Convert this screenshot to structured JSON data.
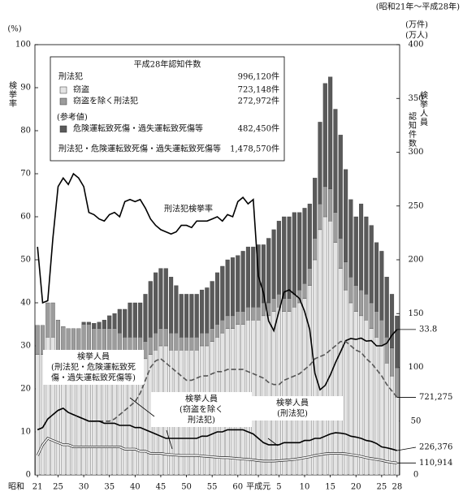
{
  "chart_data": {
    "type": "bar",
    "stacked": true,
    "title": "(昭和21年～平成28年)",
    "x_prefix": "昭和",
    "categories": [
      "21",
      null,
      null,
      null,
      "25",
      null,
      null,
      null,
      null,
      "30",
      null,
      null,
      null,
      null,
      "35",
      null,
      null,
      null,
      null,
      "40",
      null,
      null,
      null,
      null,
      "45",
      null,
      null,
      null,
      null,
      "50",
      null,
      null,
      null,
      null,
      "55",
      null,
      null,
      null,
      null,
      "60",
      null,
      null,
      null,
      "平成元",
      null,
      null,
      null,
      "5",
      null,
      null,
      null,
      null,
      "10",
      null,
      null,
      null,
      null,
      "15",
      null,
      null,
      null,
      null,
      "20",
      null,
      null,
      null,
      null,
      "25",
      null,
      null,
      "28"
    ],
    "ylabel_unit": "(%)",
    "ylabel": "検挙率",
    "y2label_units": [
      "(万件)",
      "(万人)"
    ],
    "y2labels": [
      "認知件数",
      "検挙人員"
    ],
    "ylim": [
      0,
      100
    ],
    "yticks": [
      0,
      10,
      20,
      30,
      40,
      50,
      60,
      70,
      80,
      90,
      100
    ],
    "y2lim": [
      0,
      400
    ],
    "y2ticks": [
      0,
      50,
      100,
      150,
      200,
      250,
      300,
      350,
      400
    ],
    "grid": false,
    "series": [
      {
        "name": "窃盗",
        "color": "#e4e4e4",
        "axis": "y2",
        "values": [
          112,
          112,
          128,
          128,
          116,
          112,
          108,
          108,
          108,
          112,
          112,
          108,
          108,
          112,
          112,
          112,
          112,
          108,
          108,
          108,
          108,
          108,
          112,
          116,
          120,
          120,
          116,
          116,
          116,
          116,
          116,
          116,
          120,
          120,
          124,
          128,
          132,
          136,
          136,
          140,
          140,
          144,
          144,
          144,
          148,
          148,
          152,
          156,
          152,
          152,
          156,
          160,
          164,
          176,
          200,
          228,
          240,
          236,
          216,
          192,
          172,
          160,
          152,
          148,
          144,
          136,
          128,
          120,
          104,
          92,
          72.3148
        ]
      },
      {
        "name": "窃盗を除く刑法犯",
        "color": "#9c9c9c",
        "axis": "y2",
        "values": [
          27,
          27,
          32,
          32,
          28,
          26,
          28,
          28,
          28,
          28,
          28,
          28,
          28,
          24,
          24,
          24,
          20,
          20,
          20,
          20,
          20,
          16,
          16,
          16,
          16,
          16,
          16,
          16,
          12,
          12,
          12,
          12,
          12,
          12,
          12,
          12,
          12,
          12,
          12,
          12,
          12,
          12,
          12,
          12,
          12,
          12,
          12,
          12,
          12,
          12,
          12,
          12,
          14,
          16,
          20,
          24,
          28,
          30,
          28,
          28,
          26,
          24,
          24,
          24,
          24,
          24,
          24,
          24,
          24,
          26,
          27.2972
        ]
      },
      {
        "name": "危険運転致死傷・過失運転致死傷等",
        "color": "#5a5a5a",
        "axis": "y2",
        "values": [
          0,
          0,
          0,
          0,
          0,
          0,
          0,
          0,
          0,
          2,
          2,
          5,
          6,
          8,
          12,
          14,
          22,
          26,
          32,
          32,
          32,
          44,
          52,
          56,
          56,
          56,
          52,
          44,
          40,
          40,
          40,
          40,
          40,
          42,
          44,
          48,
          50,
          52,
          54,
          52,
          56,
          56,
          56,
          58,
          54,
          60,
          64,
          68,
          76,
          76,
          76,
          72,
          70,
          60,
          56,
          76,
          96,
          104,
          96,
          96,
          86,
          72,
          64,
          80,
          72,
          72,
          64,
          64,
          56,
          50,
          48.245
        ]
      }
    ],
    "lines": [
      {
        "label_lines": [
          "刑法犯検挙率"
        ],
        "axis": "y",
        "color": "#000000",
        "dash": "none",
        "values": [
          53,
          40,
          40.5,
          55,
          67,
          69,
          67.5,
          70,
          69,
          67,
          61,
          60.5,
          59.5,
          59,
          60.5,
          61,
          60,
          63.5,
          64,
          63.5,
          64,
          62,
          59.5,
          58,
          57,
          56.5,
          56,
          56.5,
          58,
          58,
          57.5,
          59,
          59,
          59,
          59.5,
          60,
          59,
          60.5,
          60,
          63.5,
          64.5,
          63,
          64,
          46.2,
          42.3,
          35.8,
          33.5,
          38,
          42.5,
          43,
          42,
          41,
          38,
          33.8,
          23.6,
          19.8,
          20.8,
          23.2,
          26.1,
          28.6,
          31.2,
          31.7,
          31.5,
          31.8,
          31.1,
          31.2,
          30,
          30,
          30.6,
          32.5,
          33.8
        ]
      },
      {
        "label_lines": [
          "検挙人員",
          "(刑法犯・危険運転致死",
          "傷・過失運転致死傷等)"
        ],
        "axis": "y2",
        "color": "#555555",
        "dash": "6 3",
        "end_label": "721,275",
        "values": [
          42,
          44,
          52,
          56,
          60,
          62,
          58,
          56,
          54,
          52,
          50,
          50,
          50,
          50,
          50,
          52,
          56,
          60,
          64,
          68,
          76,
          88,
          100,
          106,
          108,
          104,
          100,
          96,
          92,
          88,
          88,
          90,
          92,
          92,
          94,
          96,
          96,
          98,
          98,
          98,
          98,
          96,
          94,
          92,
          90,
          86,
          84,
          84,
          88,
          90,
          92,
          94,
          98,
          102,
          108,
          110,
          112,
          116,
          120,
          124,
          124,
          120,
          116,
          114,
          108,
          104,
          98,
          92,
          84,
          78,
          72.1275
        ]
      },
      {
        "label_lines": [
          "検挙人員",
          "(刑法犯)"
        ],
        "axis": "y2",
        "color": "#000000",
        "dash": "none",
        "end_label": "226,376",
        "values": [
          42,
          44,
          52,
          56,
          60,
          62,
          58,
          56,
          54,
          52,
          50,
          50,
          50,
          48,
          48,
          48,
          46,
          46,
          46,
          44,
          44,
          42,
          40,
          38,
          36,
          34,
          34,
          34,
          34,
          34,
          34,
          34,
          36,
          36,
          38,
          40,
          40,
          42,
          42,
          42,
          42,
          40,
          38,
          34,
          30,
          28,
          28,
          28,
          30,
          30,
          30,
          30,
          32,
          32,
          34,
          34,
          36,
          38,
          39.2,
          38.8,
          38,
          36,
          35.2,
          34,
          32,
          31.2,
          29.2,
          26,
          25.2,
          24,
          22.6376
        ]
      },
      {
        "label_lines": [
          "検挙人員",
          "(窃盗を除く",
          "刑法犯)"
        ],
        "axis": "y2",
        "color": "#ffffff",
        "dash": "none",
        "end_label": "110,914",
        "values": [
          18,
          28,
          34,
          32,
          30,
          28,
          28,
          26,
          26,
          26,
          26,
          26,
          26,
          26,
          26,
          26,
          26,
          24,
          24,
          24,
          22,
          22,
          20,
          20,
          20,
          19.2,
          18.8,
          18.4,
          18,
          18,
          18,
          18,
          17.6,
          17.2,
          16.8,
          16.4,
          16,
          16,
          15.6,
          15.2,
          14.8,
          14.4,
          14,
          13.2,
          12.8,
          12.8,
          12.8,
          13.2,
          13.6,
          14,
          14.4,
          15.2,
          16,
          16.8,
          18,
          18.8,
          19.6,
          20,
          20,
          20,
          19.6,
          18.8,
          18,
          17.2,
          16,
          15.2,
          14.4,
          13.6,
          12.4,
          11.6,
          11.0914
        ]
      }
    ],
    "legend": {
      "corner": "upper-left",
      "title": "平成28年認知件数",
      "header": {
        "label": "刑法犯",
        "count": "996,120件"
      },
      "counts": [
        "723,148件",
        "272,972件",
        "482,450件"
      ],
      "note": "(参考値)",
      "footer": {
        "label": "刑法犯・危険運転致死傷・過失運転致死傷等",
        "count": "1,478,570件"
      }
    }
  }
}
